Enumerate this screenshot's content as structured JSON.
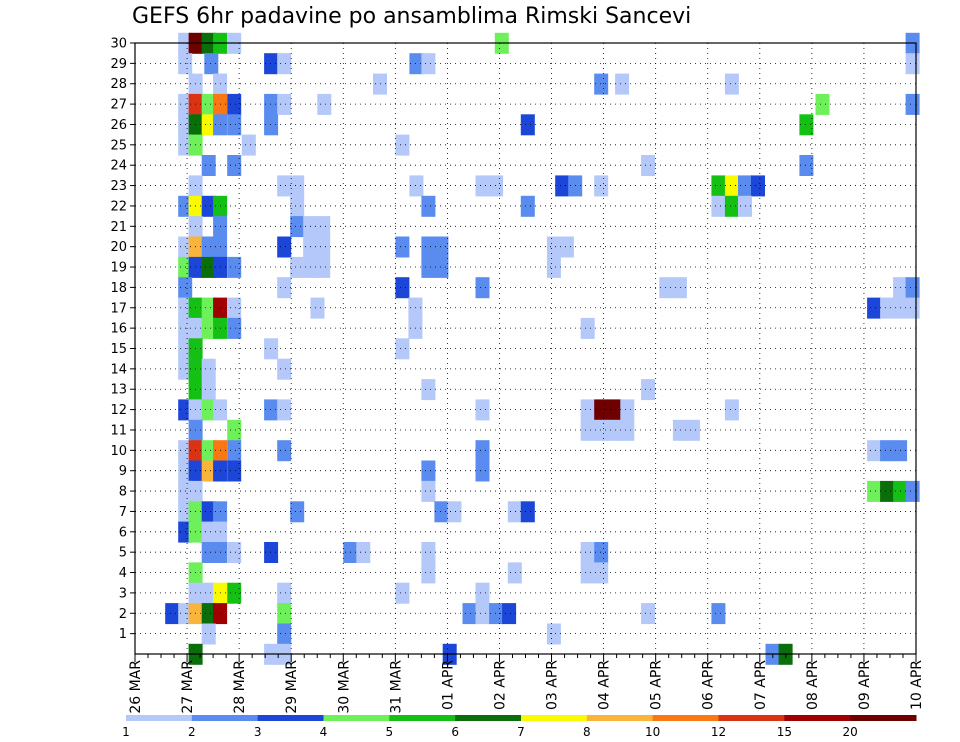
{
  "chart_data": {
    "type": "heatmap",
    "title": "GEFS 6hr padavine po ansamblima Rimski Sancevi",
    "xlabel": "",
    "ylabel": "",
    "x_tick_labels": [
      "26 MAR",
      "27 MAR",
      "28 MAR",
      "29 MAR",
      "30 MAR",
      "31 MAR",
      "01 APR",
      "02 APR",
      "03 APR",
      "04 APR",
      "05 APR",
      "06 APR",
      "07 APR",
      "08 APR",
      "09 APR",
      "10 APR"
    ],
    "x_range_days": [
      0,
      15
    ],
    "y_tick_labels": [
      "1",
      "2",
      "3",
      "4",
      "5",
      "6",
      "7",
      "8",
      "9",
      "10",
      "11",
      "12",
      "13",
      "14",
      "15",
      "16",
      "17",
      "18",
      "19",
      "20",
      "21",
      "22",
      "23",
      "24",
      "25",
      "26",
      "27",
      "28",
      "29",
      "30"
    ],
    "y_range": [
      0,
      30
    ],
    "grid": true,
    "colorbar": {
      "labels": [
        "1",
        "2",
        "3",
        "4",
        "5",
        "6",
        "7",
        "8",
        "10",
        "12",
        "15",
        "20"
      ],
      "colors": [
        "#b4c8fa",
        "#5a8cf0",
        "#1c46d8",
        "#6ef05a",
        "#14c014",
        "#0a6e0a",
        "#fafa00",
        "#fab43c",
        "#fa7814",
        "#dc3214",
        "#a00000",
        "#6e0000"
      ]
    },
    "cells_note": "each cell: [member, day offset from 26 MAR, class index]",
    "cells": [
      [
        30,
        0.84,
        0
      ],
      [
        30,
        1.04,
        11
      ],
      [
        30,
        1.29,
        5
      ],
      [
        30,
        1.51,
        4
      ],
      [
        30,
        1.78,
        0
      ],
      [
        30,
        6.92,
        3
      ],
      [
        30,
        14.81,
        1
      ],
      [
        29,
        0.84,
        0
      ],
      [
        29,
        1.34,
        1
      ],
      [
        29,
        2.49,
        2
      ],
      [
        29,
        2.74,
        0
      ],
      [
        29,
        5.28,
        1
      ],
      [
        29,
        5.51,
        0
      ],
      [
        29,
        14.81,
        0
      ],
      [
        28,
        1.04,
        0
      ],
      [
        28,
        1.51,
        0
      ],
      [
        28,
        4.58,
        0
      ],
      [
        28,
        8.83,
        1
      ],
      [
        28,
        9.23,
        0
      ],
      [
        28,
        11.34,
        0
      ],
      [
        27,
        0.84,
        0
      ],
      [
        27,
        1.04,
        9
      ],
      [
        27,
        1.29,
        3
      ],
      [
        27,
        1.51,
        8
      ],
      [
        27,
        1.78,
        2
      ],
      [
        27,
        2.49,
        1
      ],
      [
        27,
        2.74,
        0
      ],
      [
        27,
        3.51,
        0
      ],
      [
        27,
        13.08,
        3
      ],
      [
        27,
        14.81,
        1
      ],
      [
        26,
        0.84,
        0
      ],
      [
        26,
        1.04,
        5
      ],
      [
        26,
        1.29,
        6
      ],
      [
        26,
        1.51,
        1
      ],
      [
        26,
        1.78,
        1
      ],
      [
        26,
        2.49,
        1
      ],
      [
        26,
        7.42,
        2
      ],
      [
        26,
        12.77,
        4
      ],
      [
        25,
        0.84,
        0
      ],
      [
        25,
        1.04,
        3
      ],
      [
        25,
        2.06,
        0
      ],
      [
        25,
        5.01,
        0
      ],
      [
        24,
        1.29,
        1
      ],
      [
        24,
        1.78,
        1
      ],
      [
        24,
        9.73,
        0
      ],
      [
        24,
        12.77,
        1
      ],
      [
        23,
        1.04,
        0
      ],
      [
        23,
        2.74,
        0
      ],
      [
        23,
        2.99,
        0
      ],
      [
        23,
        5.28,
        0
      ],
      [
        23,
        6.55,
        0
      ],
      [
        23,
        6.81,
        0
      ],
      [
        23,
        8.08,
        2
      ],
      [
        23,
        8.33,
        1
      ],
      [
        23,
        8.83,
        0
      ],
      [
        23,
        11.08,
        4
      ],
      [
        23,
        11.34,
        6
      ],
      [
        23,
        11.59,
        1
      ],
      [
        23,
        11.84,
        2
      ],
      [
        22,
        0.84,
        1
      ],
      [
        22,
        1.04,
        6
      ],
      [
        22,
        1.29,
        2
      ],
      [
        22,
        1.51,
        4
      ],
      [
        22,
        2.99,
        0
      ],
      [
        22,
        5.51,
        1
      ],
      [
        22,
        7.42,
        1
      ],
      [
        22,
        11.08,
        0
      ],
      [
        22,
        11.34,
        4
      ],
      [
        22,
        11.59,
        0
      ],
      [
        21,
        1.04,
        0
      ],
      [
        21,
        1.51,
        1
      ],
      [
        21,
        2.99,
        1
      ],
      [
        21,
        3.24,
        0
      ],
      [
        21,
        3.49,
        0
      ],
      [
        20,
        0.84,
        0
      ],
      [
        20,
        1.04,
        7
      ],
      [
        20,
        1.29,
        1
      ],
      [
        20,
        1.51,
        1
      ],
      [
        20,
        2.74,
        2
      ],
      [
        20,
        3.24,
        0
      ],
      [
        20,
        3.49,
        0
      ],
      [
        20,
        5.01,
        1
      ],
      [
        20,
        5.51,
        1
      ],
      [
        20,
        5.76,
        1
      ],
      [
        20,
        7.92,
        0
      ],
      [
        20,
        8.17,
        0
      ],
      [
        19,
        0.84,
        3
      ],
      [
        19,
        1.04,
        2
      ],
      [
        19,
        1.29,
        5
      ],
      [
        19,
        1.51,
        2
      ],
      [
        19,
        1.78,
        1
      ],
      [
        19,
        2.99,
        0
      ],
      [
        19,
        3.24,
        0
      ],
      [
        19,
        3.49,
        0
      ],
      [
        19,
        5.51,
        1
      ],
      [
        19,
        5.76,
        1
      ],
      [
        19,
        7.92,
        0
      ],
      [
        18,
        0.84,
        1
      ],
      [
        18,
        2.74,
        0
      ],
      [
        18,
        5.01,
        2
      ],
      [
        18,
        6.55,
        1
      ],
      [
        18,
        10.08,
        0
      ],
      [
        18,
        10.34,
        0
      ],
      [
        18,
        14.57,
        0
      ],
      [
        18,
        14.81,
        1
      ],
      [
        17,
        0.84,
        0
      ],
      [
        17,
        1.04,
        4
      ],
      [
        17,
        1.29,
        3
      ],
      [
        17,
        1.51,
        10
      ],
      [
        17,
        1.78,
        0
      ],
      [
        17,
        3.38,
        0
      ],
      [
        17,
        5.26,
        0
      ],
      [
        17,
        14.07,
        2
      ],
      [
        17,
        14.32,
        0
      ],
      [
        17,
        14.57,
        0
      ],
      [
        17,
        14.81,
        0
      ],
      [
        16,
        0.84,
        0
      ],
      [
        16,
        1.04,
        0
      ],
      [
        16,
        1.29,
        3
      ],
      [
        16,
        1.51,
        4
      ],
      [
        16,
        1.78,
        1
      ],
      [
        16,
        5.26,
        0
      ],
      [
        16,
        8.57,
        0
      ],
      [
        15,
        0.84,
        0
      ],
      [
        15,
        1.04,
        4
      ],
      [
        15,
        2.49,
        0
      ],
      [
        15,
        5.01,
        0
      ],
      [
        14,
        0.84,
        0
      ],
      [
        14,
        1.04,
        4
      ],
      [
        14,
        1.29,
        0
      ],
      [
        14,
        2.74,
        0
      ],
      [
        13,
        1.04,
        4
      ],
      [
        13,
        1.29,
        0
      ],
      [
        13,
        5.51,
        0
      ],
      [
        13,
        9.73,
        0
      ],
      [
        12,
        0.84,
        2
      ],
      [
        12,
        1.04,
        0
      ],
      [
        12,
        1.29,
        3
      ],
      [
        12,
        1.51,
        0
      ],
      [
        12,
        2.49,
        1
      ],
      [
        12,
        2.74,
        0
      ],
      [
        12,
        6.55,
        0
      ],
      [
        12,
        8.57,
        0
      ],
      [
        12,
        8.83,
        11
      ],
      [
        12,
        9.08,
        11
      ],
      [
        12,
        9.33,
        0
      ],
      [
        12,
        11.34,
        0
      ],
      [
        11,
        1.04,
        1
      ],
      [
        11,
        1.78,
        3
      ],
      [
        11,
        8.57,
        0
      ],
      [
        11,
        8.83,
        0
      ],
      [
        11,
        9.08,
        0
      ],
      [
        11,
        9.33,
        0
      ],
      [
        11,
        10.34,
        0
      ],
      [
        11,
        10.59,
        0
      ],
      [
        10,
        0.84,
        0
      ],
      [
        10,
        1.04,
        9
      ],
      [
        10,
        1.29,
        3
      ],
      [
        10,
        1.51,
        8
      ],
      [
        10,
        1.78,
        1
      ],
      [
        10,
        2.74,
        1
      ],
      [
        10,
        6.55,
        1
      ],
      [
        10,
        14.07,
        0
      ],
      [
        10,
        14.32,
        1
      ],
      [
        10,
        14.57,
        1
      ],
      [
        9,
        0.84,
        0
      ],
      [
        9,
        1.04,
        2
      ],
      [
        9,
        1.29,
        7
      ],
      [
        9,
        1.51,
        2
      ],
      [
        9,
        1.78,
        2
      ],
      [
        9,
        5.51,
        1
      ],
      [
        9,
        6.55,
        1
      ],
      [
        8,
        0.84,
        0
      ],
      [
        8,
        1.04,
        0
      ],
      [
        8,
        5.51,
        0
      ],
      [
        8,
        14.07,
        3
      ],
      [
        8,
        14.32,
        5
      ],
      [
        8,
        14.57,
        4
      ],
      [
        8,
        14.81,
        1
      ],
      [
        7,
        0.84,
        0
      ],
      [
        7,
        1.04,
        3
      ],
      [
        7,
        1.29,
        2
      ],
      [
        7,
        1.51,
        1
      ],
      [
        7,
        2.99,
        1
      ],
      [
        7,
        5.76,
        1
      ],
      [
        7,
        6.01,
        0
      ],
      [
        7,
        7.17,
        0
      ],
      [
        7,
        7.42,
        2
      ],
      [
        6,
        0.84,
        2
      ],
      [
        6,
        1.04,
        3
      ],
      [
        6,
        1.29,
        0
      ],
      [
        6,
        1.51,
        0
      ],
      [
        5,
        1.29,
        1
      ],
      [
        5,
        1.51,
        1
      ],
      [
        5,
        1.78,
        0
      ],
      [
        5,
        2.49,
        2
      ],
      [
        5,
        4.01,
        1
      ],
      [
        5,
        4.26,
        0
      ],
      [
        5,
        5.51,
        0
      ],
      [
        5,
        8.57,
        0
      ],
      [
        5,
        8.83,
        1
      ],
      [
        4,
        1.04,
        3
      ],
      [
        4,
        5.51,
        0
      ],
      [
        4,
        7.17,
        0
      ],
      [
        4,
        8.57,
        0
      ],
      [
        4,
        8.83,
        0
      ],
      [
        3,
        1.04,
        0
      ],
      [
        3,
        1.29,
        0
      ],
      [
        3,
        1.51,
        6
      ],
      [
        3,
        1.78,
        4
      ],
      [
        3,
        2.74,
        0
      ],
      [
        3,
        5.01,
        0
      ],
      [
        3,
        6.55,
        0
      ],
      [
        2,
        0.59,
        2
      ],
      [
        2,
        0.84,
        0
      ],
      [
        2,
        1.04,
        7
      ],
      [
        2,
        1.29,
        5
      ],
      [
        2,
        1.51,
        10
      ],
      [
        2,
        2.74,
        3
      ],
      [
        2,
        6.3,
        1
      ],
      [
        2,
        6.55,
        0
      ],
      [
        2,
        6.81,
        1
      ],
      [
        2,
        7.06,
        2
      ],
      [
        2,
        9.73,
        0
      ],
      [
        2,
        11.08,
        1
      ],
      [
        1,
        1.29,
        0
      ],
      [
        1,
        2.74,
        1
      ],
      [
        1,
        7.92,
        0
      ],
      [
        0,
        1.04,
        5
      ],
      [
        0,
        2.49,
        0
      ],
      [
        0,
        2.74,
        0
      ],
      [
        0,
        5.92,
        2
      ],
      [
        0,
        12.12,
        1
      ],
      [
        0,
        12.37,
        5
      ]
    ]
  }
}
